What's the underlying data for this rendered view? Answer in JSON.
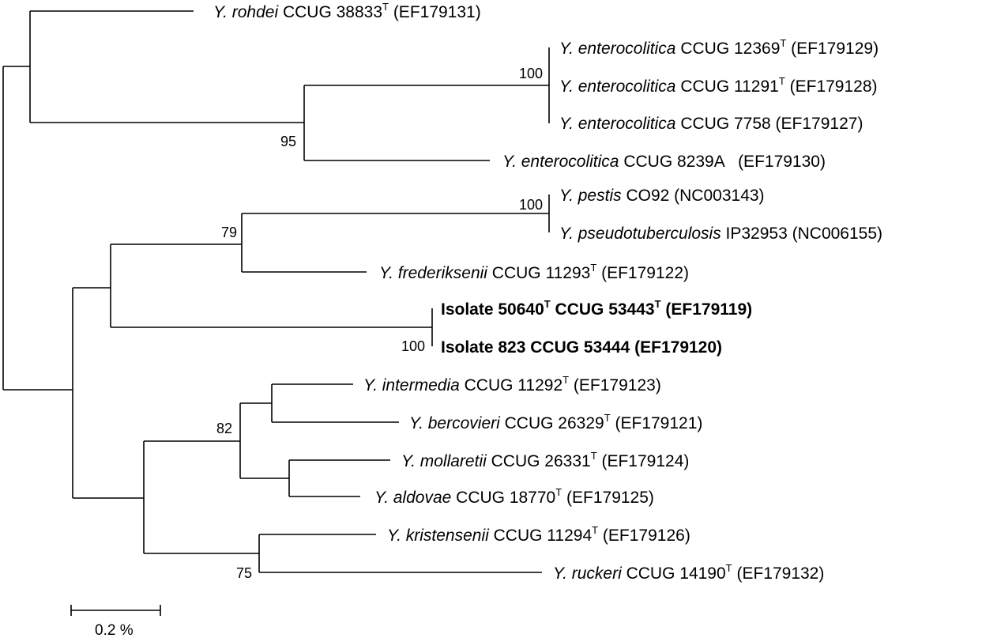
{
  "leaves": [
    {
      "italic": "Y. rohdei",
      "strain": " CCUG 38833",
      "sup": "T",
      "acc": " (EF179131)",
      "bold": false
    },
    {
      "italic": "Y. enterocolitica",
      "strain": " CCUG 12369",
      "sup": "T",
      "acc": " (EF179129)",
      "bold": false
    },
    {
      "italic": "Y. enterocolitica",
      "strain": " CCUG 11291",
      "sup": "T",
      "acc": " (EF179128)",
      "bold": false
    },
    {
      "italic": "Y. enterocolitica",
      "strain": " CCUG 7758",
      "sup": "",
      "acc": " (EF179127)",
      "bold": false
    },
    {
      "italic": "Y. enterocolitica",
      "strain": " CCUG 8239A",
      "sup": "",
      "acc": "   (EF179130)",
      "bold": false
    },
    {
      "italic": "Y. pestis",
      "strain": " CO92",
      "sup": "",
      "acc": " (NC003143)",
      "bold": false
    },
    {
      "italic": "Y. pseudotuberculosis",
      "strain": " IP32953",
      "sup": "",
      "acc": " (NC006155)",
      "bold": false
    },
    {
      "italic": "Y. frederiksenii",
      "strain": " CCUG 11293",
      "sup": "T",
      "acc": " (EF179122)",
      "bold": false
    },
    {
      "plain": "Isolate 50640",
      "sup": "T",
      "plain2": " CCUG 53443",
      "sup2": "T",
      "acc": " (EF179119)",
      "bold": true
    },
    {
      "plain": "Isolate 823 CCUG 53444 (EF179120)",
      "bold": true
    },
    {
      "italic": "Y. intermedia",
      "strain": " CCUG 11292",
      "sup": "T",
      "acc": " (EF179123)",
      "bold": false
    },
    {
      "italic": "Y. bercovieri",
      "strain": " CCUG 26329",
      "sup": "T",
      "acc": " (EF179121)",
      "bold": false
    },
    {
      "italic": "Y. mollaretii",
      "strain": " CCUG 26331",
      "sup": "T",
      "acc": " (EF179124)",
      "bold": false
    },
    {
      "italic": "Y. aldovae",
      "strain": " CCUG 18770",
      "sup": "T",
      "acc": " (EF179125)",
      "bold": false
    },
    {
      "italic": "Y. kristensenii",
      "strain": " CCUG 11294",
      "sup": "T",
      "acc": " (EF179126)",
      "bold": false
    },
    {
      "italic": "Y. ruckeri",
      "strain": " CCUG 14190",
      "sup": "T",
      "acc": " (EF179132)",
      "bold": false
    }
  ],
  "support_values": [
    "100",
    "95",
    "100",
    "79",
    "100",
    "82",
    "75"
  ],
  "scale_label": "0.2 %"
}
